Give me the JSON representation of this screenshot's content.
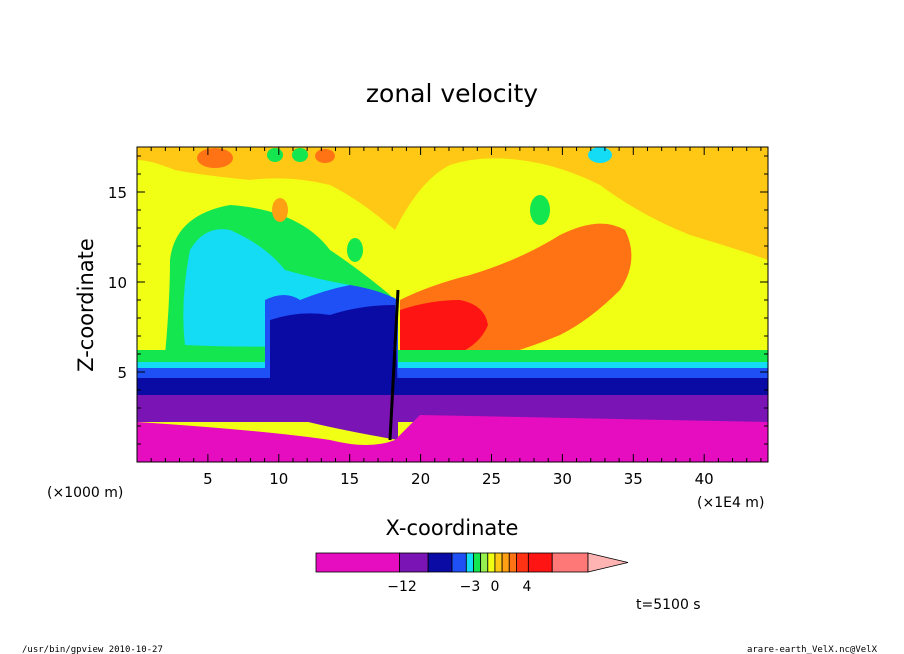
{
  "chart_data": {
    "type": "heatmap",
    "title": "zonal velocity",
    "xlabel": "X-coordinate",
    "ylabel": "Z-coordinate",
    "x_unit": "(×1E4 m)",
    "y_unit": "(×1000 m)",
    "xlim": [
      0,
      44.5
    ],
    "ylim": [
      0,
      17.5
    ],
    "x_ticks": [
      "5",
      "10",
      "15",
      "20",
      "25",
      "30",
      "35",
      "40"
    ],
    "y_ticks": [
      "5",
      "10",
      "15"
    ],
    "colorbar": {
      "labels": [
        "−12",
        "−3",
        "0",
        "4"
      ],
      "colors": [
        "#e60cc0",
        "#7a14b4",
        "#0a0aa4",
        "#1e50f5",
        "#14dcf5",
        "#14e650",
        "#96f050",
        "#f0ff14",
        "#ffc814",
        "#ffa014",
        "#ff7314",
        "#ff3214",
        "#ff1414",
        "#ff7878",
        "#ffb4b4"
      ]
    },
    "annotation_time": "t=5100 s"
  },
  "footer": {
    "left": "/usr/bin/gpview   2010-10-27",
    "right": "arare-earth_VelX.nc@VelX"
  }
}
